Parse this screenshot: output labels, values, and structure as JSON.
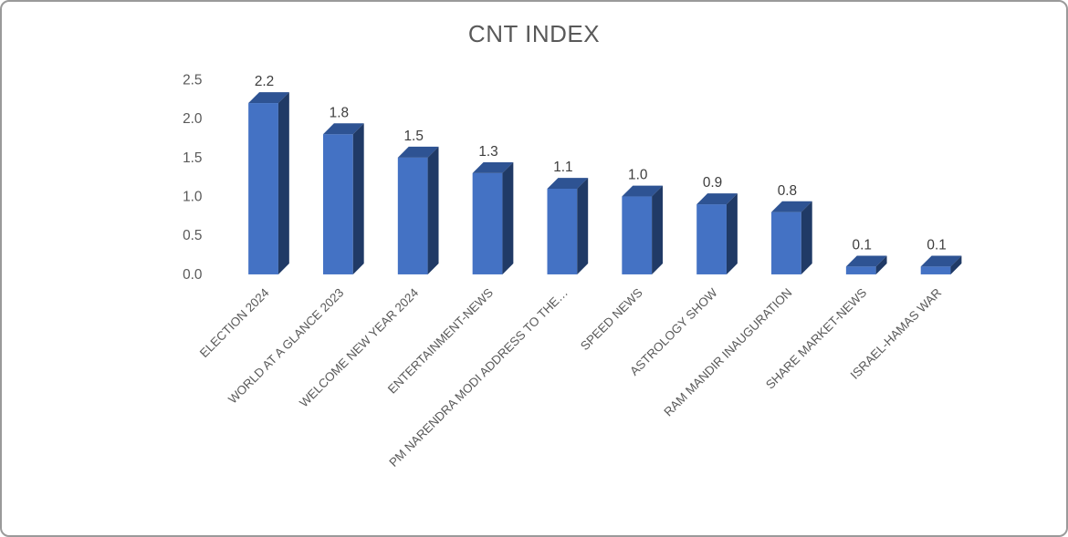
{
  "chart_data": {
    "type": "bar",
    "style": "3d-column",
    "title": "CNT INDEX",
    "categories": [
      "ELECTION 2024",
      "WORLD AT A GLANCE 2023",
      "WELCOME NEW YEAR 2024",
      "ENTERTAINMENT-NEWS",
      "PM NARENDRA MODI ADDRESS TO THE…",
      "SPEED NEWS",
      "ASTROLOGY SHOW",
      "RAM MANDIR INAUGURATION",
      "SHARE MARKET-NEWS",
      "ISRAEL-HAMAS WAR"
    ],
    "values": [
      2.2,
      1.8,
      1.5,
      1.3,
      1.1,
      1.0,
      0.9,
      0.8,
      0.1,
      0.1
    ],
    "value_labels": [
      "2.2",
      "1.8",
      "1.5",
      "1.3",
      "1.1",
      "1.0",
      "0.9",
      "0.8",
      "0.1",
      "0.1"
    ],
    "xlabel": "",
    "ylabel": "",
    "ylim": [
      0,
      2.5
    ],
    "y_ticks": [
      "0.0",
      "0.5",
      "1.0",
      "1.5",
      "2.0",
      "2.5"
    ],
    "grid": false,
    "legend": "none",
    "colors": {
      "bar_front": "#4472C4",
      "bar_top": "#2E5393",
      "bar_side": "#203A66",
      "axis_text": "#595959",
      "value_text": "#3d3d3d",
      "title_text": "#595959"
    }
  }
}
